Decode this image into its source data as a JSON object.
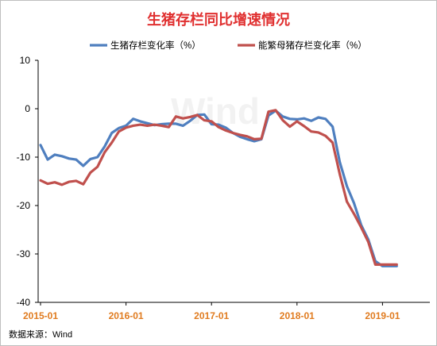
{
  "chart_data": {
    "type": "line",
    "title": "生猪存栏同比增速情况",
    "source": "数据来源：Wind",
    "watermark": "Wind",
    "legend_position": "top-center",
    "grid": false,
    "ylim": [
      -40,
      10
    ],
    "yticks": [
      10,
      0,
      -10,
      -20,
      -30,
      -40
    ],
    "xtick_labels": [
      "2015-01",
      "2016-01",
      "2017-01",
      "2018-01",
      "2019-01"
    ],
    "x": [
      "2015-01",
      "2015-02",
      "2015-03",
      "2015-04",
      "2015-05",
      "2015-06",
      "2015-07",
      "2015-08",
      "2015-09",
      "2015-10",
      "2015-11",
      "2015-12",
      "2016-01",
      "2016-02",
      "2016-03",
      "2016-04",
      "2016-05",
      "2016-06",
      "2016-07",
      "2016-08",
      "2016-09",
      "2016-10",
      "2016-11",
      "2016-12",
      "2017-01",
      "2017-02",
      "2017-03",
      "2017-04",
      "2017-05",
      "2017-06",
      "2017-07",
      "2017-08",
      "2017-09",
      "2017-10",
      "2017-11",
      "2017-12",
      "2018-01",
      "2018-02",
      "2018-03",
      "2018-04",
      "2018-05",
      "2018-06",
      "2018-07",
      "2018-08",
      "2018-09",
      "2018-10",
      "2018-11",
      "2018-12",
      "2019-01",
      "2019-02",
      "2019-03"
    ],
    "series": [
      {
        "name": "生猪存栏变化率（%）",
        "color": "#4f7fbf",
        "values": [
          -7.5,
          -10.5,
          -9.5,
          -9.8,
          -10.3,
          -10.5,
          -11.8,
          -10.4,
          -10,
          -7.8,
          -5,
          -4,
          -3.5,
          -2.1,
          -2.6,
          -3,
          -3.4,
          -3.2,
          -3.1,
          -3.1,
          -3.5,
          -2.5,
          -1.3,
          -1.2,
          -3.2,
          -3.3,
          -3.9,
          -5,
          -5.8,
          -6.3,
          -6.7,
          -6.3,
          -1.4,
          -0.4,
          -1.6,
          -2.1,
          -2.2,
          -2,
          -2.5,
          -1.8,
          -2.1,
          -3.7,
          -11,
          -16,
          -19.5,
          -24,
          -27,
          -31.5,
          -32.5,
          -32.5,
          -32.5
        ]
      },
      {
        "name": "能繁母猪存栏变化率（%）",
        "color": "#c0504d",
        "values": [
          -14.8,
          -15.5,
          -15.2,
          -15.7,
          -15.1,
          -14.9,
          -15.6,
          -13.2,
          -12,
          -9,
          -7,
          -4.7,
          -3.9,
          -3.5,
          -3.3,
          -3.5,
          -3.3,
          -3.5,
          -3.8,
          -1.6,
          -2,
          -1.7,
          -1.3,
          -2.4,
          -2.6,
          -3.8,
          -4.5,
          -5,
          -5.4,
          -5.7,
          -6.3,
          -6.2,
          -0.6,
          -0.3,
          -2.4,
          -3.7,
          -2.6,
          -3.6,
          -4.7,
          -4.9,
          -5.6,
          -7,
          -13.5,
          -19.2,
          -21.7,
          -24.5,
          -27.5,
          -32.2,
          -32.2,
          -32.2,
          -32.2
        ]
      }
    ]
  }
}
